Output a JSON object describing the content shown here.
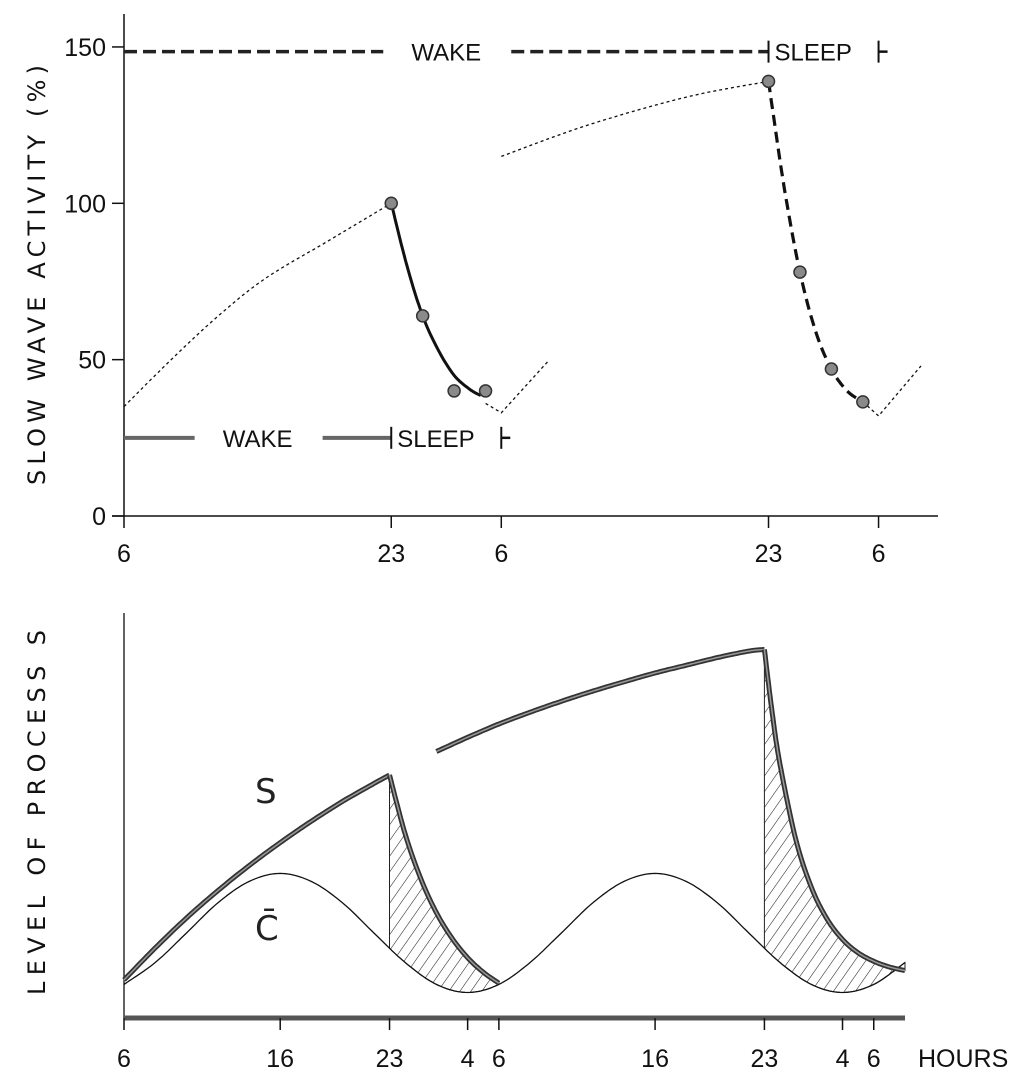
{
  "chart_data": [
    {
      "type": "line",
      "ylabel": "SLOW WAVE ACTIVITY (%)",
      "ylim": [
        0,
        160
      ],
      "yticks": [
        0,
        50,
        100,
        150
      ],
      "xticks": [
        {
          "day": 1,
          "hour": 6,
          "label": "6"
        },
        {
          "day": 1,
          "hour": 23,
          "label": "23"
        },
        {
          "day": 2,
          "hour": 6,
          "label": "6"
        },
        {
          "day": 2,
          "hour": 23,
          "label": "23"
        },
        {
          "day": 3,
          "hour": 6,
          "label": "6"
        }
      ],
      "series": [
        {
          "style": "dotted",
          "interp": "smooth",
          "points": [
            [
              1,
              6,
              35
            ],
            [
              1,
              9,
              50
            ],
            [
              1,
              12,
              64
            ],
            [
              1,
              15,
              76
            ],
            [
              1,
              19,
              88
            ],
            [
              1,
              23,
              100
            ]
          ]
        },
        {
          "style": "solid",
          "interp": "smooth",
          "points": [
            [
              1,
              23,
              100
            ],
            [
              2,
              0,
              80
            ],
            [
              2,
              1,
              64
            ],
            [
              2,
              2,
              53
            ],
            [
              2,
              3,
              45
            ],
            [
              2,
              4,
              40.5
            ],
            [
              2,
              4.7,
              38.5
            ]
          ]
        },
        {
          "style": "dotted",
          "interp": "linear",
          "points": [
            [
              2,
              5,
              36
            ],
            [
              2,
              6,
              33
            ],
            [
              2,
              9,
              49.6
            ]
          ]
        },
        {
          "style": "dotted",
          "interp": "smooth",
          "points": [
            [
              2,
              6,
              115
            ],
            [
              2,
              11.5,
              125
            ],
            [
              2,
              17.8,
              134
            ],
            [
              2,
              23,
              139
            ]
          ]
        },
        {
          "style": "dashed",
          "interp": "smooth",
          "points": [
            [
              2,
              23,
              139
            ],
            [
              3,
              0,
              105
            ],
            [
              3,
              1,
              78
            ],
            [
              3,
              2,
              59
            ],
            [
              3,
              3,
              47
            ],
            [
              3,
              4,
              40
            ],
            [
              3,
              5,
              36.5
            ]
          ]
        },
        {
          "style": "dotted",
          "interp": "linear",
          "points": [
            [
              3,
              5,
              36.5
            ],
            [
              3,
              6,
              32
            ],
            [
              3,
              8.7,
              48
            ]
          ]
        }
      ],
      "markers": [
        [
          1,
          23,
          100
        ],
        [
          2,
          1,
          64
        ],
        [
          2,
          3,
          40
        ],
        [
          2,
          5,
          40
        ],
        [
          2,
          23,
          139
        ],
        [
          3,
          1,
          78
        ],
        [
          3,
          3,
          47
        ],
        [
          3,
          5,
          36.5
        ]
      ],
      "schedules": [
        {
          "style": "dashed",
          "level": 148.5,
          "wake_label": "WAKE",
          "sleep_label": "SLEEP",
          "wake": [
            [
              1,
              6
            ],
            [
              2,
              23
            ]
          ],
          "sleep": [
            [
              2,
              23
            ],
            [
              3,
              6
            ]
          ]
        },
        {
          "style": "solid",
          "level": 25,
          "wake_label": "WAKE",
          "sleep_label": "SLEEP",
          "wake": [
            [
              1,
              6
            ],
            [
              1,
              23
            ]
          ],
          "sleep": [
            [
              1,
              23
            ],
            [
              2,
              6
            ]
          ]
        }
      ]
    },
    {
      "type": "line",
      "ylabel": "LEVEL OF PROCESS S",
      "xlabel": "HOURS",
      "ylim": [
        0,
        100
      ],
      "xticks": [
        {
          "day": 1,
          "hour": 6,
          "label": "6"
        },
        {
          "day": 1,
          "hour": 16,
          "label": "16"
        },
        {
          "day": 1,
          "hour": 23,
          "label": "23"
        },
        {
          "day": 2,
          "hour": 4,
          "label": "4"
        },
        {
          "day": 2,
          "hour": 6,
          "label": "6"
        },
        {
          "day": 2,
          "hour": 16,
          "label": "16"
        },
        {
          "day": 2,
          "hour": 23,
          "label": "23"
        },
        {
          "day": 3,
          "hour": 4,
          "label": "4"
        },
        {
          "day": 3,
          "hour": 6,
          "label": "6"
        }
      ],
      "series": [
        {
          "name": "S",
          "segments": [
            [
              [
                1,
                6,
                9.4
              ],
              [
                1,
                8,
                17.3
              ],
              [
                1,
                10,
                24.7
              ],
              [
                1,
                12,
                31.4
              ],
              [
                1,
                14,
                37.6
              ],
              [
                1,
                16,
                43.3
              ],
              [
                1,
                18,
                48.6
              ],
              [
                1,
                20,
                53.5
              ],
              [
                1,
                22,
                57.9
              ],
              [
                1,
                23,
                60
              ]
            ],
            [
              [
                1,
                23,
                60
              ],
              [
                2,
                0,
                45.4
              ],
              [
                2,
                1,
                34.4
              ],
              [
                2,
                2,
                26
              ],
              [
                2,
                3,
                19.7
              ],
              [
                2,
                4,
                14.9
              ],
              [
                2,
                5,
                11.3
              ],
              [
                2,
                6,
                8.6
              ]
            ],
            [
              [
                2,
                2,
                65.8
              ],
              [
                2,
                4,
                69.3
              ],
              [
                2,
                6,
                72.6
              ],
              [
                2,
                8,
                75.5
              ],
              [
                2,
                10,
                78.2
              ],
              [
                2,
                12,
                80.7
              ],
              [
                2,
                14,
                83
              ],
              [
                2,
                16,
                85.2
              ],
              [
                2,
                18,
                87.1
              ],
              [
                2,
                20,
                89
              ],
              [
                2,
                22,
                90.6
              ],
              [
                2,
                23,
                91
              ]
            ],
            [
              [
                2,
                23,
                91
              ],
              [
                2,
                23.5,
                75.3
              ],
              [
                3,
                0,
                62.6
              ],
              [
                3,
                1,
                44.2
              ],
              [
                3,
                2,
                32.3
              ],
              [
                3,
                3,
                24.5
              ],
              [
                3,
                4,
                19.4
              ],
              [
                3,
                5,
                16.1
              ],
              [
                3,
                6,
                14
              ],
              [
                3,
                7,
                12.6
              ],
              [
                3,
                8,
                11.7
              ]
            ]
          ]
        },
        {
          "name": "C̄",
          "segments": [
            [
              [
                1,
                6,
                8.3
              ],
              [
                1,
                8,
                13.7
              ],
              [
                1,
                10,
                21
              ],
              [
                1,
                12,
                28.4
              ],
              [
                1,
                14,
                33.7
              ],
              [
                1,
                16,
                35.7
              ],
              [
                1,
                18,
                33.7
              ],
              [
                1,
                20,
                28.4
              ],
              [
                1,
                22,
                21
              ],
              [
                2,
                0,
                13.7
              ],
              [
                2,
                2,
                8.3
              ],
              [
                2,
                4,
                6.3
              ],
              [
                2,
                6,
                8.3
              ],
              [
                2,
                8,
                13.7
              ],
              [
                2,
                10,
                21
              ],
              [
                2,
                12,
                28.4
              ],
              [
                2,
                14,
                33.7
              ],
              [
                2,
                16,
                35.7
              ],
              [
                2,
                18,
                33.7
              ],
              [
                2,
                20,
                28.4
              ],
              [
                2,
                22,
                21
              ],
              [
                3,
                0,
                13.7
              ],
              [
                3,
                2,
                8.3
              ],
              [
                3,
                4,
                6.3
              ],
              [
                3,
                6,
                8.3
              ],
              [
                3,
                8,
                13.7
              ]
            ]
          ]
        }
      ],
      "shaded": [
        {
          "s_segment": 1,
          "pattern": "hatched"
        },
        {
          "s_segment": 3,
          "pattern": "hatched"
        }
      ]
    }
  ]
}
